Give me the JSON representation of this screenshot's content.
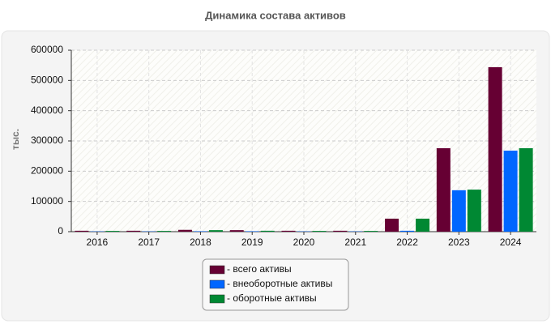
{
  "chart_data": {
    "type": "bar",
    "title": "Динамика состава активов",
    "y_label": "тыс.",
    "categories": [
      "2016",
      "2017",
      "2018",
      "2019",
      "2020",
      "2021",
      "2022",
      "2023",
      "2024"
    ],
    "series": [
      {
        "name": "- всего активы",
        "color": "#660033",
        "values": [
          3000,
          3000,
          6000,
          5000,
          3000,
          3000,
          43000,
          276000,
          544000
        ]
      },
      {
        "name": "- внеоборотные активы",
        "color": "#0066ff",
        "values": [
          1000,
          1000,
          1500,
          1500,
          1000,
          1000,
          3000,
          137000,
          268000
        ]
      },
      {
        "name": "- оборотные активы",
        "color": "#008833",
        "values": [
          2500,
          2500,
          5000,
          3000,
          2500,
          2500,
          43000,
          139000,
          276000
        ]
      }
    ],
    "ylim": [
      0,
      600000
    ],
    "yticks": [
      0,
      100000,
      200000,
      300000,
      400000,
      500000,
      600000
    ],
    "grid": true
  }
}
